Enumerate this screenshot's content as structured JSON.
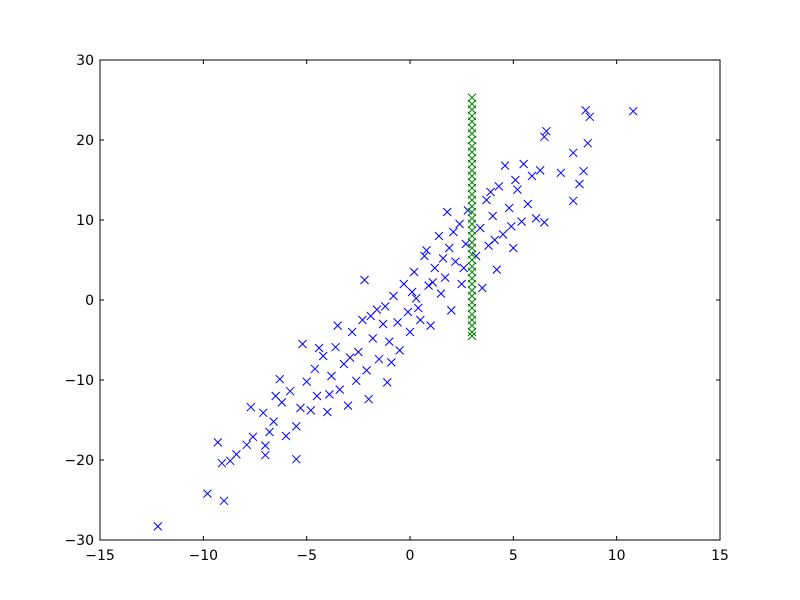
{
  "chart_data": {
    "type": "scatter",
    "title": "",
    "xlabel": "",
    "ylabel": "",
    "xlim": [
      -15,
      15
    ],
    "ylim": [
      -30,
      30
    ],
    "grid": false,
    "marker": "x",
    "x_ticks": [
      -15,
      -10,
      -5,
      0,
      5,
      10,
      15
    ],
    "y_ticks": [
      -30,
      -20,
      -10,
      0,
      10,
      20,
      30
    ],
    "x_tick_labels": [
      "−15",
      "−10",
      "−5",
      "0",
      "5",
      "10",
      "15"
    ],
    "y_tick_labels": [
      "−30",
      "−20",
      "−10",
      "0",
      "10",
      "20",
      "30"
    ],
    "series": [
      {
        "color": "#0000ff",
        "points": [
          [
            -12.2,
            -28.3
          ],
          [
            -9.8,
            -24.2
          ],
          [
            -9.0,
            -25.1
          ],
          [
            -9.3,
            -17.8
          ],
          [
            -9.1,
            -20.4
          ],
          [
            -8.7,
            -20.1
          ],
          [
            -8.4,
            -19.3
          ],
          [
            -7.9,
            -18.1
          ],
          [
            -7.6,
            -17.1
          ],
          [
            -7.7,
            -13.4
          ],
          [
            -7.0,
            -19.4
          ],
          [
            -7.0,
            -18.2
          ],
          [
            -6.8,
            -16.5
          ],
          [
            -7.1,
            -14.1
          ],
          [
            -6.6,
            -15.2
          ],
          [
            -6.2,
            -12.8
          ],
          [
            -6.3,
            -9.9
          ],
          [
            -6.0,
            -17.0
          ],
          [
            -5.8,
            -11.4
          ],
          [
            -5.5,
            -19.9
          ],
          [
            -5.5,
            -15.8
          ],
          [
            -5.3,
            -13.5
          ],
          [
            -5.2,
            -5.5
          ],
          [
            -5.0,
            -10.2
          ],
          [
            -4.8,
            -13.8
          ],
          [
            -4.6,
            -8.6
          ],
          [
            -4.5,
            -12.0
          ],
          [
            -4.2,
            -7.0
          ],
          [
            -4.0,
            -14.0
          ],
          [
            -3.8,
            -9.5
          ],
          [
            -3.6,
            -5.9
          ],
          [
            -3.4,
            -11.2
          ],
          [
            -3.2,
            -8.0
          ],
          [
            -3.0,
            -13.2
          ],
          [
            -2.8,
            -4.0
          ],
          [
            -2.6,
            -10.1
          ],
          [
            -2.5,
            -6.5
          ],
          [
            -2.3,
            -2.5
          ],
          [
            -2.1,
            -8.8
          ],
          [
            -2.0,
            -12.4
          ],
          [
            -1.8,
            -4.8
          ],
          [
            -1.6,
            -1.2
          ],
          [
            -1.5,
            -7.4
          ],
          [
            -1.3,
            -3.0
          ],
          [
            -1.1,
            -10.3
          ],
          [
            -1.0,
            -5.2
          ],
          [
            -0.8,
            0.5
          ],
          [
            -0.6,
            -2.8
          ],
          [
            -0.5,
            -6.3
          ],
          [
            -0.3,
            2.0
          ],
          [
            -0.1,
            -1.5
          ],
          [
            0.0,
            -4.0
          ],
          [
            0.2,
            3.5
          ],
          [
            0.3,
            0.2
          ],
          [
            0.5,
            -2.5
          ],
          [
            0.7,
            5.5
          ],
          [
            0.9,
            1.8
          ],
          [
            1.0,
            -3.2
          ],
          [
            1.2,
            4.0
          ],
          [
            1.4,
            8.0
          ],
          [
            1.5,
            0.8
          ],
          [
            1.7,
            2.8
          ],
          [
            1.9,
            6.5
          ],
          [
            2.0,
            -1.3
          ],
          [
            2.2,
            4.8
          ],
          [
            2.4,
            9.5
          ],
          [
            2.5,
            2.0
          ],
          [
            2.7,
            7.0
          ],
          [
            2.8,
            11.2
          ],
          [
            3.2,
            5.5
          ],
          [
            3.4,
            9.0
          ],
          [
            3.5,
            1.5
          ],
          [
            3.7,
            12.5
          ],
          [
            3.8,
            6.8
          ],
          [
            4.0,
            10.5
          ],
          [
            4.2,
            3.8
          ],
          [
            4.3,
            14.2
          ],
          [
            4.5,
            8.2
          ],
          [
            4.6,
            16.8
          ],
          [
            4.8,
            11.5
          ],
          [
            5.0,
            6.5
          ],
          [
            5.2,
            13.8
          ],
          [
            5.4,
            9.8
          ],
          [
            5.5,
            17.0
          ],
          [
            5.7,
            12.0
          ],
          [
            5.9,
            15.5
          ],
          [
            6.1,
            10.2
          ],
          [
            6.3,
            16.2
          ],
          [
            6.5,
            9.7
          ],
          [
            6.6,
            21.1
          ],
          [
            6.5,
            20.4
          ],
          [
            7.3,
            15.9
          ],
          [
            7.9,
            12.4
          ],
          [
            7.9,
            18.4
          ],
          [
            8.2,
            14.5
          ],
          [
            8.4,
            16.1
          ],
          [
            8.5,
            23.7
          ],
          [
            8.7,
            22.9
          ],
          [
            8.6,
            19.6
          ],
          [
            10.8,
            23.6
          ],
          [
            -2.2,
            2.5
          ],
          [
            -1.2,
            -0.8
          ],
          [
            0.8,
            6.2
          ],
          [
            1.8,
            11.0
          ],
          [
            -3.5,
            -3.2
          ],
          [
            -4.4,
            -6.0
          ],
          [
            -2.9,
            -7.2
          ],
          [
            -1.9,
            -2.0
          ],
          [
            -0.9,
            -7.8
          ],
          [
            0.1,
            1.0
          ],
          [
            1.1,
            2.2
          ],
          [
            2.1,
            8.5
          ],
          [
            4.1,
            7.5
          ],
          [
            5.1,
            15.0
          ],
          [
            -6.5,
            -12.0
          ],
          [
            -3.9,
            -11.8
          ],
          [
            0.4,
            -1.0
          ],
          [
            1.6,
            5.2
          ],
          [
            2.6,
            4.0
          ],
          [
            3.9,
            13.5
          ],
          [
            4.9,
            9.2
          ]
        ]
      },
      {
        "color": "#008000",
        "points": [
          [
            3,
            -4.5
          ],
          [
            3,
            -4.0
          ],
          [
            3,
            -3.2
          ],
          [
            3,
            -2.5
          ],
          [
            3,
            -1.8
          ],
          [
            3,
            -1.0
          ],
          [
            3,
            -0.3
          ],
          [
            3,
            0.5
          ],
          [
            3,
            1.2
          ],
          [
            3,
            2.0
          ],
          [
            3,
            2.7
          ],
          [
            3,
            3.5
          ],
          [
            3,
            4.2
          ],
          [
            3,
            5.0
          ],
          [
            3,
            5.7
          ],
          [
            3,
            6.5
          ],
          [
            3,
            7.2
          ],
          [
            3,
            8.0
          ],
          [
            3,
            8.7
          ],
          [
            3,
            9.5
          ],
          [
            3,
            10.2
          ],
          [
            3,
            11.0
          ],
          [
            3,
            11.7
          ],
          [
            3,
            12.5
          ],
          [
            3,
            13.2
          ],
          [
            3,
            14.0
          ],
          [
            3,
            14.7
          ],
          [
            3,
            15.5
          ],
          [
            3,
            16.2
          ],
          [
            3,
            17.0
          ],
          [
            3,
            17.7
          ],
          [
            3,
            18.5
          ],
          [
            3,
            19.2
          ],
          [
            3,
            20.0
          ],
          [
            3,
            20.8
          ],
          [
            3,
            21.5
          ],
          [
            3,
            22.3
          ],
          [
            3,
            23.0
          ],
          [
            3,
            23.8
          ],
          [
            3,
            24.5
          ],
          [
            3,
            25.3
          ]
        ]
      }
    ]
  }
}
